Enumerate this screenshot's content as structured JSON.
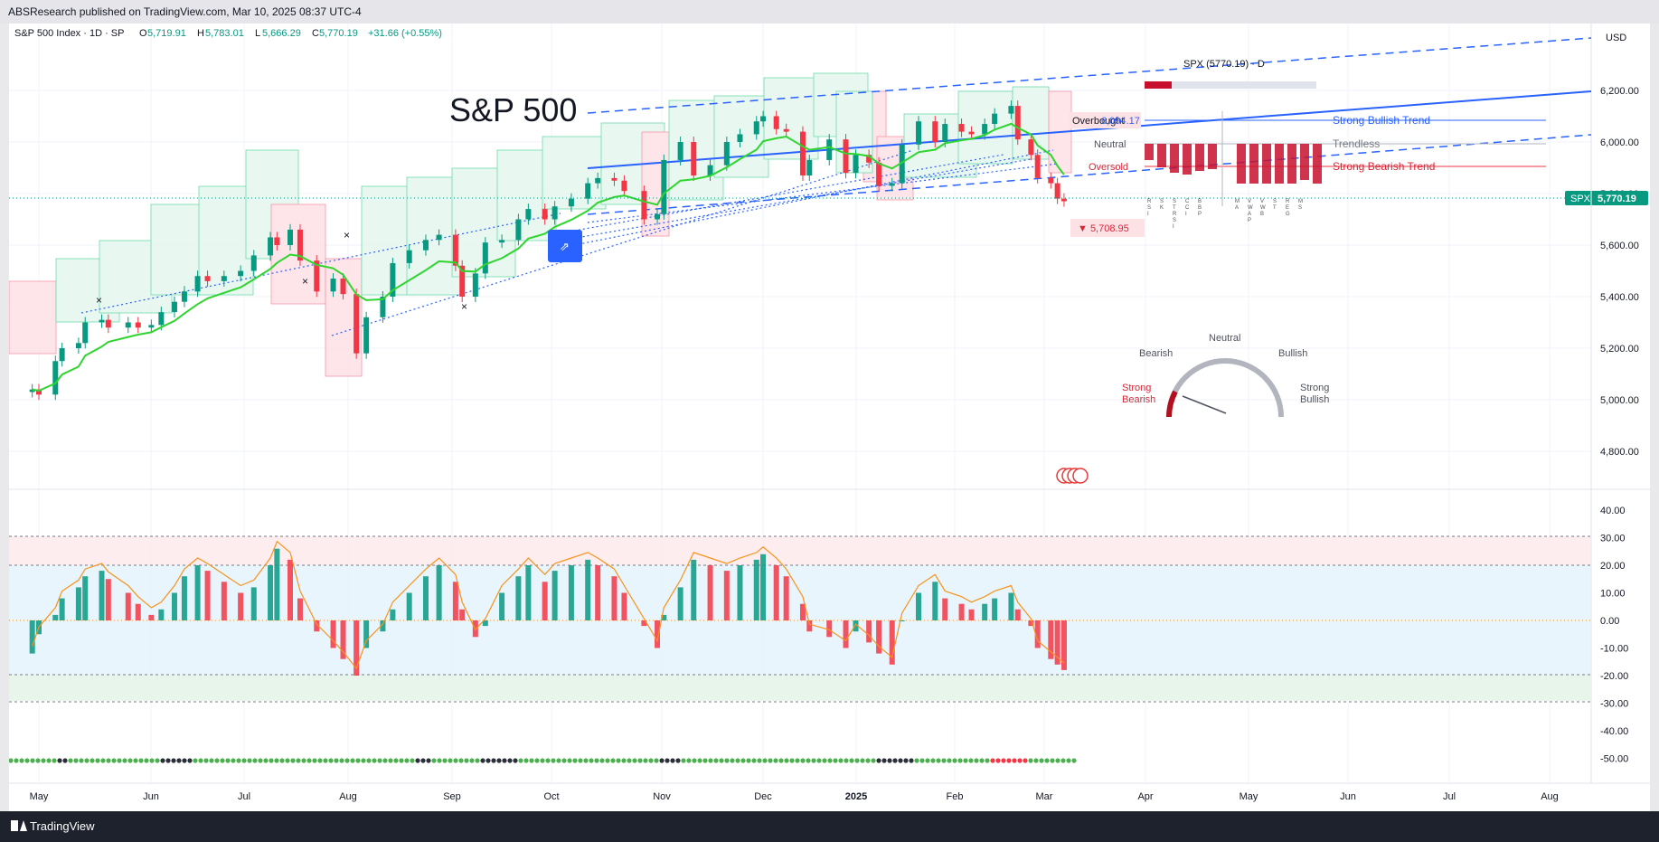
{
  "publisher_line": "ABSResearch published on TradingView.com, Mar 10, 2025 08:37 UTC-4",
  "footer_brand": "TradingView",
  "colors": {
    "up": "#089981",
    "down": "#f23645",
    "ema_up": "#2fd52f",
    "ema_down": "#e81b1b",
    "trend": "#2962ff",
    "osc_line": "#f7931a",
    "price_badge": "#089981"
  },
  "legend": {
    "symbol": "S&P 500 Index · 1D · SP",
    "open_label": "O",
    "open": "5,719.91",
    "high_label": "H",
    "high": "5,783.01",
    "low_label": "L",
    "low": "5,666.29",
    "close_label": "C",
    "close": "5,770.19",
    "change": "+31.66 (+0.55%)"
  },
  "annotations": {
    "big_title": "S&P 500",
    "low_tag": "▼ 5,708.95",
    "panel_header": "SPX (5770.19) · D",
    "overbought_text": "Overbought",
    "overbought_value": "6,094.17",
    "neutral": "Neutral",
    "oversold": "Oversold",
    "strong_bullish_trend": "Strong Bullish Trend",
    "trendless": "Trendless",
    "strong_bearish_trend": "Strong Bearish Trend",
    "bar_labels": [
      "R S I",
      "S K",
      "S T R S I",
      "C C I",
      "B B P",
      "",
      "M A",
      "V W A P",
      "V W B",
      "S T",
      "R E G",
      "M S"
    ],
    "gauge": {
      "neutral": "Neutral",
      "bearish": "Bearish",
      "bullish": "Bullish",
      "strong_bearish": "Strong Bearish",
      "strong_bullish": "Strong Bullish"
    }
  },
  "chart_data": [
    {
      "type": "candlestick",
      "x": [
        "2024-04-29",
        "2024-05-01",
        "2024-05-06",
        "2024-05-08",
        "2024-05-13",
        "2024-05-15",
        "2024-05-20",
        "2024-05-22",
        "2024-05-28",
        "2024-05-31",
        "2024-06-04",
        "2024-06-07",
        "2024-06-11",
        "2024-06-14",
        "2024-06-18",
        "2024-06-21",
        "2024-06-26",
        "2024-07-01",
        "2024-07-05",
        "2024-07-10",
        "2024-07-12",
        "2024-07-16",
        "2024-07-19",
        "2024-07-24",
        "2024-07-29",
        "2024-08-01",
        "2024-08-05",
        "2024-08-08",
        "2024-08-13",
        "2024-08-16",
        "2024-08-21",
        "2024-08-26",
        "2024-08-30",
        "2024-09-04",
        "2024-09-06",
        "2024-09-10",
        "2024-09-13",
        "2024-09-18",
        "2024-09-23",
        "2024-09-26",
        "2024-10-01",
        "2024-10-04",
        "2024-10-09",
        "2024-10-14",
        "2024-10-17",
        "2024-10-22",
        "2024-10-25",
        "2024-10-31",
        "2024-11-04",
        "2024-11-06",
        "2024-11-11",
        "2024-11-15",
        "2024-11-20",
        "2024-11-25",
        "2024-11-29",
        "2024-12-04",
        "2024-12-06",
        "2024-12-10",
        "2024-12-13",
        "2024-12-18",
        "2024-12-20",
        "2024-12-26",
        "2024-12-31",
        "2025-01-03",
        "2025-01-07",
        "2025-01-10",
        "2025-01-14",
        "2025-01-17",
        "2025-01-22",
        "2025-01-27",
        "2025-01-30",
        "2025-02-04",
        "2025-02-07",
        "2025-02-11",
        "2025-02-14",
        "2025-02-19",
        "2025-02-21",
        "2025-02-25",
        "2025-02-27",
        "2025-03-03",
        "2025-03-05",
        "2025-03-07"
      ],
      "close": [
        5040,
        5020,
        5150,
        5200,
        5220,
        5300,
        5310,
        5280,
        5300,
        5280,
        5290,
        5340,
        5380,
        5420,
        5480,
        5460,
        5480,
        5500,
        5560,
        5630,
        5600,
        5660,
        5540,
        5420,
        5470,
        5410,
        5180,
        5320,
        5400,
        5530,
        5580,
        5620,
        5640,
        5520,
        5400,
        5490,
        5610,
        5620,
        5700,
        5740,
        5700,
        5750,
        5780,
        5840,
        5860,
        5850,
        5810,
        5700,
        5720,
        5930,
        6000,
        5870,
        5910,
        6000,
        6030,
        6080,
        6100,
        6050,
        6040,
        5870,
        5930,
        6010,
        5880,
        5950,
        5920,
        5830,
        5840,
        5990,
        6080,
        6000,
        6070,
        6040,
        6030,
        6070,
        6110,
        6140,
        6010,
        5950,
        5860,
        5840,
        5780,
        5770
      ],
      "title": "",
      "ylabel": "USD",
      "ylim": [
        4700,
        6400
      ],
      "y_ticks": [
        "6,200.00",
        "6,000.00",
        "5,800.00",
        "5,600.00",
        "5,400.00",
        "5,200.00",
        "5,000.00",
        "4,800.00"
      ],
      "last_price_label": "5,770.19",
      "last_price_symbol": "SPX",
      "x_tick_labels": [
        "May",
        "Jun",
        "Jul",
        "Aug",
        "Sep",
        "Oct",
        "Nov",
        "Dec",
        "2025",
        "Feb",
        "Mar",
        "Apr",
        "May",
        "Jun",
        "Jul",
        "Aug"
      ]
    },
    {
      "type": "bar",
      "x": [
        "2024-04-29",
        "2024-05-01",
        "2024-05-06",
        "2024-05-08",
        "2024-05-13",
        "2024-05-15",
        "2024-05-20",
        "2024-05-22",
        "2024-05-28",
        "2024-05-31",
        "2024-06-04",
        "2024-06-07",
        "2024-06-11",
        "2024-06-14",
        "2024-06-18",
        "2024-06-21",
        "2024-06-26",
        "2024-07-01",
        "2024-07-05",
        "2024-07-10",
        "2024-07-12",
        "2024-07-16",
        "2024-07-19",
        "2024-07-24",
        "2024-07-29",
        "2024-08-01",
        "2024-08-05",
        "2024-08-08",
        "2024-08-13",
        "2024-08-16",
        "2024-08-21",
        "2024-08-26",
        "2024-08-30",
        "2024-09-04",
        "2024-09-06",
        "2024-09-10",
        "2024-09-13",
        "2024-09-18",
        "2024-09-23",
        "2024-09-26",
        "2024-10-01",
        "2024-10-04",
        "2024-10-09",
        "2024-10-14",
        "2024-10-17",
        "2024-10-22",
        "2024-10-25",
        "2024-10-31",
        "2024-11-04",
        "2024-11-06",
        "2024-11-11",
        "2024-11-15",
        "2024-11-20",
        "2024-11-25",
        "2024-11-29",
        "2024-12-04",
        "2024-12-06",
        "2024-12-10",
        "2024-12-13",
        "2024-12-18",
        "2024-12-20",
        "2024-12-26",
        "2024-12-31",
        "2025-01-03",
        "2025-01-07",
        "2025-01-10",
        "2025-01-14",
        "2025-01-17",
        "2025-01-22",
        "2025-01-27",
        "2025-01-30",
        "2025-02-04",
        "2025-02-07",
        "2025-02-11",
        "2025-02-14",
        "2025-02-19",
        "2025-02-21",
        "2025-02-25",
        "2025-02-27",
        "2025-03-03",
        "2025-03-05",
        "2025-03-07"
      ],
      "values": [
        -12,
        -5,
        2,
        8,
        12,
        16,
        18,
        15,
        10,
        6,
        2,
        4,
        10,
        16,
        20,
        18,
        14,
        10,
        12,
        20,
        26,
        22,
        8,
        -4,
        -10,
        -14,
        -20,
        -10,
        -4,
        4,
        10,
        16,
        20,
        14,
        4,
        -6,
        -2,
        10,
        16,
        20,
        14,
        18,
        20,
        22,
        20,
        16,
        10,
        -2,
        -10,
        2,
        12,
        22,
        20,
        18,
        20,
        22,
        24,
        20,
        16,
        6,
        -4,
        -6,
        -10,
        -4,
        -8,
        -12,
        -16,
        0,
        10,
        14,
        8,
        6,
        4,
        6,
        8,
        10,
        4,
        -2,
        -10,
        -14,
        -16,
        -18
      ],
      "title": "",
      "ylim": [
        -55,
        45
      ],
      "y_ticks": [
        "40.00",
        "30.00",
        "20.00",
        "10.00",
        "0.00",
        "-10.00",
        "-20.00",
        "-30.00",
        "-40.00",
        "-50.00"
      ]
    }
  ]
}
